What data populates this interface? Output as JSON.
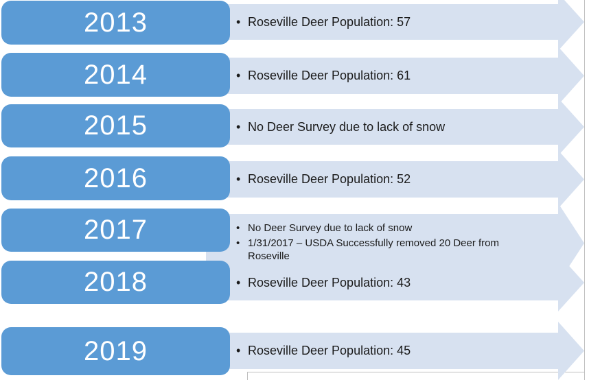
{
  "timeline": {
    "rows": [
      {
        "year": "2013",
        "items": [
          "Roseville Deer Population: 57"
        ]
      },
      {
        "year": "2014",
        "items": [
          "Roseville Deer Population: 61"
        ]
      },
      {
        "year": "2015",
        "items": [
          "No Deer Survey due to lack of snow"
        ]
      },
      {
        "year": "2016",
        "items": [
          "Roseville Deer Population: 52"
        ]
      },
      {
        "year": "2017",
        "items": [
          "No Deer Survey due to lack of snow",
          "1/31/2017 – USDA Successfully removed 20 Deer from Roseville"
        ]
      },
      {
        "year": "2018",
        "items": [
          "Roseville Deer Population: 43"
        ]
      },
      {
        "year": "2019",
        "items": [
          "Roseville Deer Population: 45"
        ]
      }
    ],
    "colors": {
      "year_box_fill": "#5b9bd5",
      "arrow_fill": "#d7e1f0",
      "year_text": "#ffffff",
      "body_text": "#1a1a1a",
      "frame_border": "#bfbfbf"
    }
  }
}
